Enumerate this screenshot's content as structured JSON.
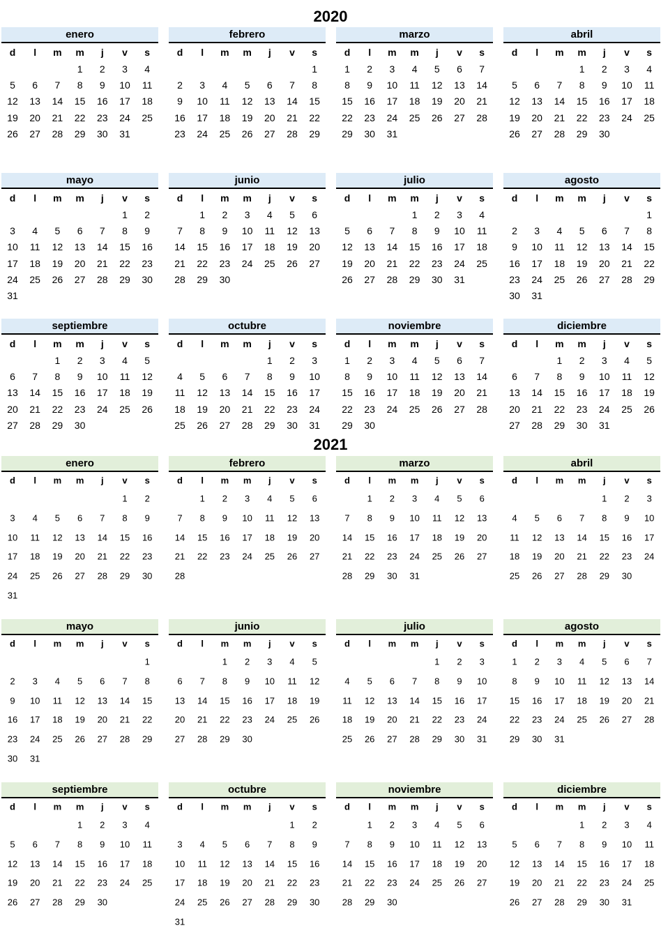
{
  "weekdays": [
    "d",
    "l",
    "m",
    "m",
    "j",
    "v",
    "s"
  ],
  "years": [
    {
      "title": "2020",
      "header_color": "#ddebf7",
      "months": [
        {
          "name": "enero",
          "offset": 3,
          "days": 31
        },
        {
          "name": "febrero",
          "offset": 6,
          "days": 29
        },
        {
          "name": "marzo",
          "offset": 0,
          "days": 31
        },
        {
          "name": "abril",
          "offset": 3,
          "days": 30
        },
        {
          "name": "mayo",
          "offset": 5,
          "days": 31
        },
        {
          "name": "junio",
          "offset": 1,
          "days": 30
        },
        {
          "name": "julio",
          "offset": 3,
          "days": 31
        },
        {
          "name": "agosto",
          "offset": 6,
          "days": 31
        },
        {
          "name": "septiembre",
          "offset": 2,
          "days": 30
        },
        {
          "name": "octubre",
          "offset": 4,
          "days": 31
        },
        {
          "name": "noviembre",
          "offset": 0,
          "days": 30
        },
        {
          "name": "diciembre",
          "offset": 2,
          "days": 31
        }
      ]
    },
    {
      "title": "2021",
      "header_color": "#e2efda",
      "months": [
        {
          "name": "enero",
          "offset": 5,
          "days": 31
        },
        {
          "name": "febrero",
          "offset": 1,
          "days": 28
        },
        {
          "name": "marzo",
          "offset": 1,
          "days": 31
        },
        {
          "name": "abril",
          "offset": 4,
          "days": 30
        },
        {
          "name": "mayo",
          "offset": 6,
          "days": 31
        },
        {
          "name": "junio",
          "offset": 2,
          "days": 30
        },
        {
          "name": "julio",
          "offset": 4,
          "days": 31
        },
        {
          "name": "agosto",
          "offset": 0,
          "days": 31
        },
        {
          "name": "septiembre",
          "offset": 3,
          "days": 30
        },
        {
          "name": "octubre",
          "offset": 5,
          "days": 31
        },
        {
          "name": "noviembre",
          "offset": 1,
          "days": 30
        },
        {
          "name": "diciembre",
          "offset": 3,
          "days": 31
        }
      ]
    }
  ]
}
